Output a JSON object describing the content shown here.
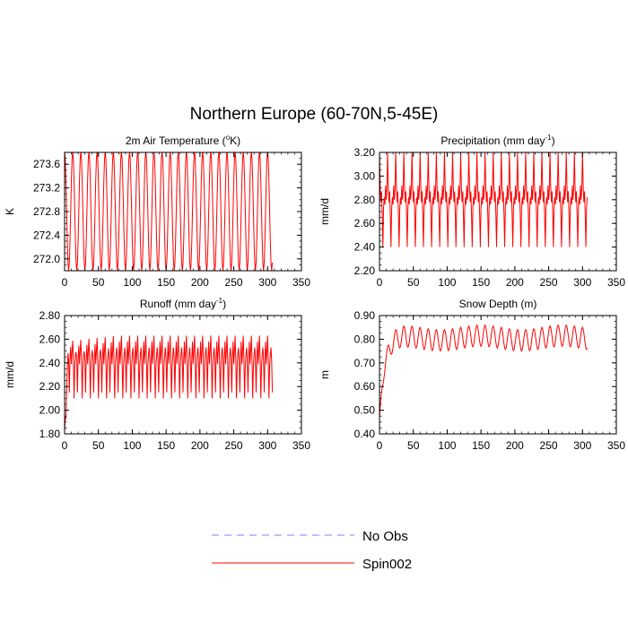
{
  "figure_title": "Northern Europe (60-70N,5-45E)",
  "colors": {
    "spin002": "#ff0000",
    "no_obs": "#7f7fff",
    "axis": "#000000"
  },
  "legend": {
    "placement": "bottom-center",
    "entries": [
      {
        "label": "No Obs",
        "color": "#7f7fff",
        "style": "dashed"
      },
      {
        "label": "Spin002",
        "color": "#ff0000",
        "style": "solid"
      }
    ]
  },
  "chart_data": [
    {
      "type": "line",
      "title": "2m Air Temperature (°K)",
      "title_parts": {
        "pre": "2m Air Temperature (",
        "sup": "o",
        "post": "K)"
      },
      "ylabel": "K",
      "xlabel": "",
      "xlim": [
        0,
        350
      ],
      "ylim": [
        271.8,
        273.8
      ],
      "x_ticks": [
        0,
        50,
        100,
        150,
        200,
        250,
        300,
        350
      ],
      "y_ticks": [
        272.0,
        272.4,
        272.8,
        273.2,
        273.6
      ],
      "y_tick_labels": [
        "272.0",
        "272.4",
        "272.8",
        "273.2",
        "273.6"
      ],
      "grid": false,
      "series": [
        {
          "name": "Spin002",
          "color": "#ff0000",
          "pattern": "annual_cycle",
          "x_range": [
            0,
            307
          ],
          "period": 12,
          "min": 271.8,
          "max": 273.82
        }
      ]
    },
    {
      "type": "line",
      "title": "Precipitation (mm day⁻¹)",
      "title_parts": {
        "pre": "Precipitation (mm day",
        "sup": "-1",
        "post": ")"
      },
      "ylabel": "mm/d",
      "xlabel": "",
      "xlim": [
        0,
        350
      ],
      "ylim": [
        2.2,
        3.2
      ],
      "x_ticks": [
        0,
        50,
        100,
        150,
        200,
        250,
        300,
        350
      ],
      "y_ticks": [
        2.2,
        2.4,
        2.6,
        2.8,
        3.0,
        3.2
      ],
      "y_tick_labels": [
        "2.20",
        "2.40",
        "2.60",
        "2.80",
        "3.00",
        "3.20"
      ],
      "grid": false,
      "series": [
        {
          "name": "Spin002",
          "color": "#ff0000",
          "pattern": "annual_cycle_spiky",
          "x_range": [
            0,
            307
          ],
          "period": 12,
          "min": 2.4,
          "max": 3.2,
          "band": [
            2.68,
            2.92
          ]
        }
      ]
    },
    {
      "type": "line",
      "title": "Runoff (mm day⁻¹)",
      "title_parts": {
        "pre": "Runoff (mm day",
        "sup": "-1",
        "post": ")"
      },
      "ylabel": "mm/d",
      "xlabel": "",
      "xlim": [
        0,
        350
      ],
      "ylim": [
        1.8,
        2.8
      ],
      "x_ticks": [
        0,
        50,
        100,
        150,
        200,
        250,
        300,
        350
      ],
      "y_ticks": [
        1.8,
        2.0,
        2.2,
        2.4,
        2.6,
        2.8
      ],
      "y_tick_labels": [
        "1.80",
        "2.00",
        "2.20",
        "2.40",
        "2.60",
        "2.80"
      ],
      "grid": false,
      "series": [
        {
          "name": "Spin002",
          "color": "#ff0000",
          "pattern": "spinup_cycle",
          "x_range": [
            0,
            307
          ],
          "period": 12,
          "start": 1.82,
          "min": 2.1,
          "max_start": 2.58,
          "max_end": 2.63,
          "mid": 2.42
        }
      ]
    },
    {
      "type": "line",
      "title": "Snow Depth (m)",
      "title_parts": {
        "pre": "Snow Depth (m)",
        "sup": "",
        "post": ""
      },
      "ylabel": "m",
      "xlabel": "",
      "xlim": [
        0,
        350
      ],
      "ylim": [
        0.4,
        0.9
      ],
      "x_ticks": [
        0,
        50,
        100,
        150,
        200,
        250,
        300,
        350
      ],
      "y_ticks": [
        0.4,
        0.5,
        0.6,
        0.7,
        0.8,
        0.9
      ],
      "y_tick_labels": [
        "0.40",
        "0.50",
        "0.60",
        "0.70",
        "0.80",
        "0.90"
      ],
      "grid": false,
      "series": [
        {
          "name": "Spin002",
          "color": "#ff0000",
          "pattern": "snow_spinup",
          "x_range": [
            0,
            307
          ],
          "period": 12,
          "start": 0.47,
          "plateau_low": 0.76,
          "plateau_high": 0.85
        }
      ]
    }
  ]
}
